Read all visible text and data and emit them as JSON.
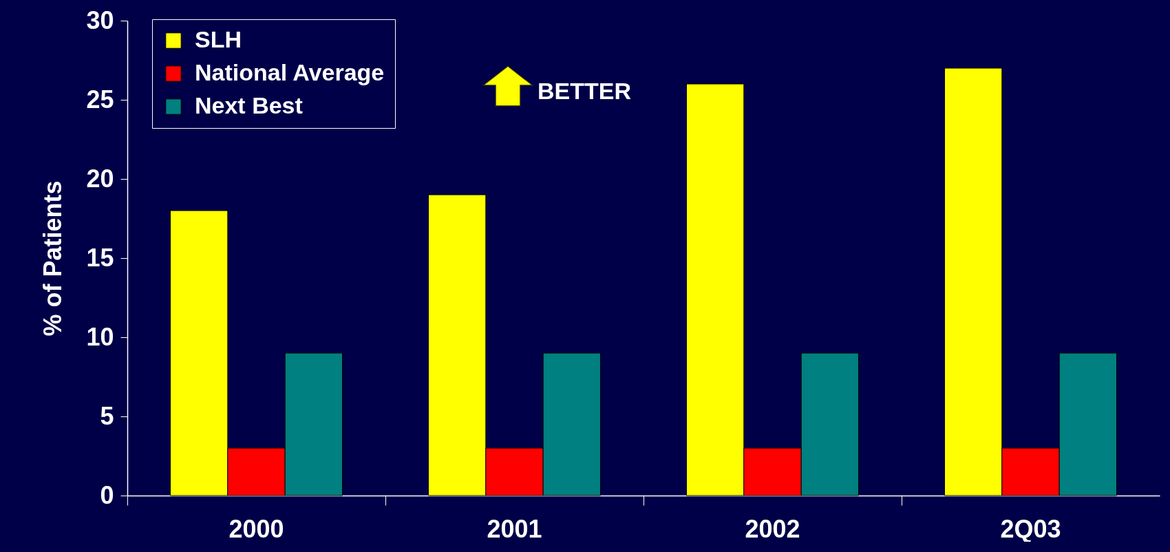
{
  "chart_data": {
    "type": "bar",
    "ylabel": "% of Patients",
    "categories": [
      "2000",
      "2001",
      "2002",
      "2Q03"
    ],
    "series": [
      {
        "name": "SLH",
        "color": "#ffff00",
        "values": [
          18,
          19,
          26,
          27
        ]
      },
      {
        "name": "National Average",
        "color": "#ff0000",
        "values": [
          3,
          3,
          3,
          3
        ]
      },
      {
        "name": "Next Best",
        "color": "#008080",
        "values": [
          9,
          9,
          9,
          9
        ]
      }
    ],
    "ylim": [
      0,
      30
    ],
    "yticks": [
      0,
      5,
      10,
      15,
      20,
      25,
      30
    ],
    "grid": false,
    "legend": "top left",
    "annotations": [
      "BETTER"
    ]
  }
}
